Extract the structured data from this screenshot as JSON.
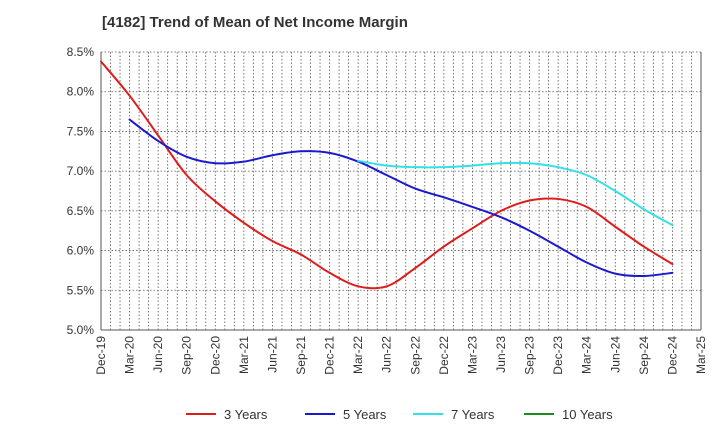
{
  "chart_data": {
    "type": "line",
    "title": "[4182]  Trend of Mean of Net Income Margin",
    "xlabel": "",
    "ylabel": "",
    "x": [
      "Dec-19",
      "Mar-20",
      "Jun-20",
      "Sep-20",
      "Dec-20",
      "Mar-21",
      "Jun-21",
      "Sep-21",
      "Dec-21",
      "Mar-22",
      "Jun-22",
      "Sep-22",
      "Dec-22",
      "Mar-23",
      "Jun-23",
      "Sep-23",
      "Dec-23",
      "Mar-24",
      "Jun-24",
      "Sep-24",
      "Dec-24",
      "Mar-25"
    ],
    "ylim": [
      5.0,
      8.5
    ],
    "yticks": [
      "5.0%",
      "5.5%",
      "6.0%",
      "6.5%",
      "7.0%",
      "7.5%",
      "8.0%",
      "8.5%"
    ],
    "ytick_values": [
      5.0,
      5.5,
      6.0,
      6.5,
      7.0,
      7.5,
      8.0,
      8.5
    ],
    "grid": true,
    "legend_position": "bottom",
    "series": [
      {
        "name": "3 Years",
        "color": "#dd1c1c",
        "values": [
          8.38,
          7.95,
          7.45,
          6.95,
          6.62,
          6.35,
          6.12,
          5.95,
          5.72,
          5.55,
          5.55,
          5.78,
          6.05,
          6.28,
          6.5,
          6.63,
          6.65,
          6.55,
          6.3,
          6.05,
          5.83,
          null
        ]
      },
      {
        "name": "5 Years",
        "color": "#1a1acc",
        "values": [
          null,
          7.65,
          7.38,
          7.18,
          7.1,
          7.12,
          7.2,
          7.25,
          7.23,
          7.12,
          6.95,
          6.78,
          6.67,
          6.55,
          6.42,
          6.25,
          6.05,
          5.85,
          5.71,
          5.68,
          5.72,
          null
        ]
      },
      {
        "name": "7 Years",
        "color": "#33e0e6",
        "values": [
          null,
          null,
          null,
          null,
          null,
          null,
          null,
          null,
          null,
          7.13,
          7.07,
          7.05,
          7.05,
          7.07,
          7.1,
          7.1,
          7.05,
          6.95,
          6.75,
          6.52,
          6.32,
          null
        ]
      },
      {
        "name": "10 Years",
        "color": "#1f8a1f",
        "values": [
          null,
          null,
          null,
          null,
          null,
          null,
          null,
          null,
          null,
          null,
          null,
          null,
          null,
          null,
          null,
          null,
          null,
          null,
          null,
          null,
          null,
          null
        ]
      }
    ]
  }
}
